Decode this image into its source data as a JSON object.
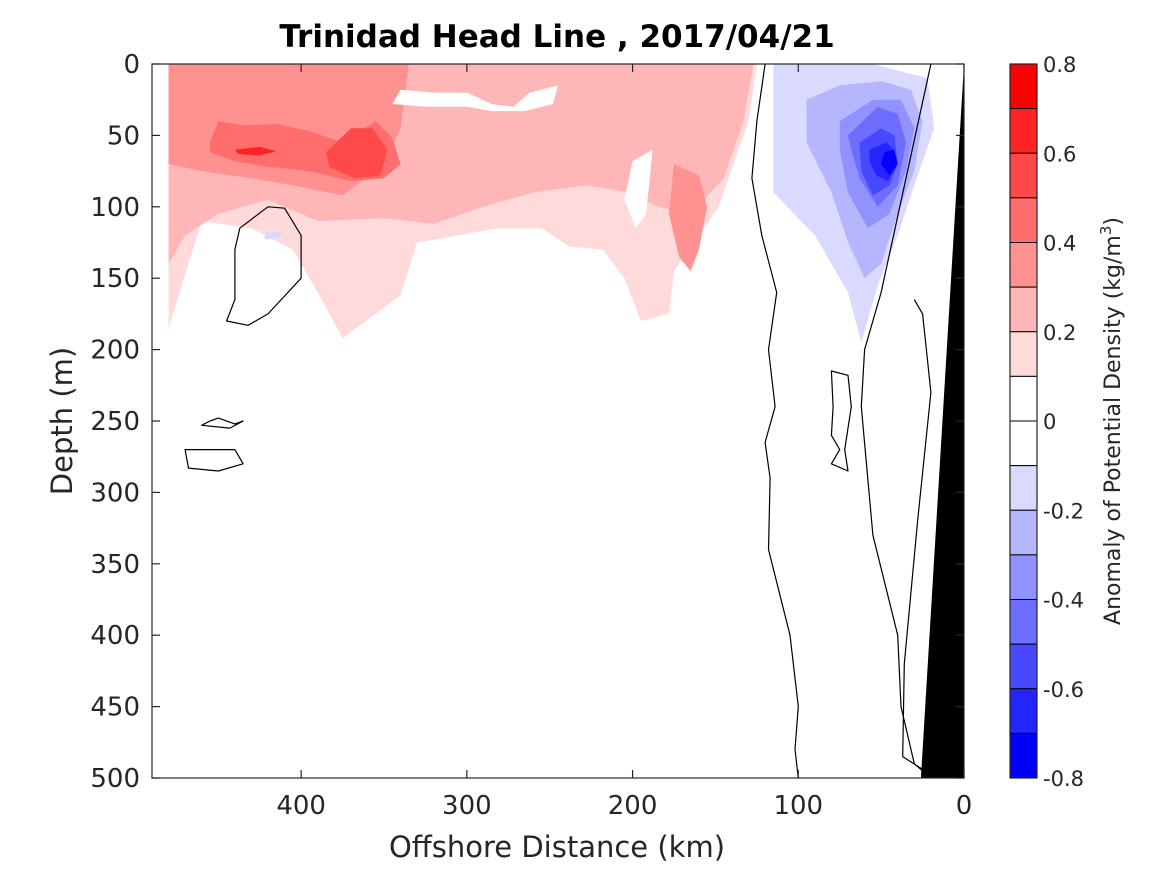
{
  "chart_data": {
    "type": "heatmap",
    "title": "Trinidad Head Line , 2017/04/21",
    "xlabel": "Offshore Distance (km)",
    "ylabel": "Depth (m)",
    "xlim": [
      490,
      0
    ],
    "ylim": [
      0,
      500
    ],
    "x_ticks": [
      400,
      300,
      200,
      100,
      0
    ],
    "y_ticks": [
      0,
      50,
      100,
      150,
      200,
      250,
      300,
      350,
      400,
      450,
      500
    ],
    "colorbar": {
      "label_main": "Anomaly of Potential Density (kg/m",
      "label_sup": "3",
      "label_close": ")",
      "range": [
        -0.8,
        0.8
      ],
      "ticks": [
        0.8,
        0.6,
        0.4,
        0.2,
        0,
        -0.2,
        -0.4,
        -0.6,
        -0.8
      ],
      "tick_labels": [
        "0.8",
        "0.6",
        "0.4",
        "0.2",
        "0",
        "-0.2",
        "-0.4",
        "-0.6",
        "-0.8"
      ],
      "levels": [
        {
          "min": 0.7,
          "max": 0.8,
          "color": "#ff0000"
        },
        {
          "min": 0.6,
          "max": 0.7,
          "color": "#ff2424"
        },
        {
          "min": 0.5,
          "max": 0.6,
          "color": "#ff4848"
        },
        {
          "min": 0.4,
          "max": 0.5,
          "color": "#ff6d6d"
        },
        {
          "min": 0.3,
          "max": 0.4,
          "color": "#ff9191"
        },
        {
          "min": 0.2,
          "max": 0.3,
          "color": "#ffb6b6"
        },
        {
          "min": 0.1,
          "max": 0.2,
          "color": "#ffdada"
        },
        {
          "min": 0.0,
          "max": 0.1,
          "color": "#ffffff"
        },
        {
          "min": -0.1,
          "max": 0.0,
          "color": "#ffffff"
        },
        {
          "min": -0.2,
          "max": -0.1,
          "color": "#dadaff"
        },
        {
          "min": -0.3,
          "max": -0.2,
          "color": "#b6b6ff"
        },
        {
          "min": -0.4,
          "max": -0.3,
          "color": "#9191ff"
        },
        {
          "min": -0.5,
          "max": -0.4,
          "color": "#6d6dff"
        },
        {
          "min": -0.6,
          "max": -0.5,
          "color": "#4848ff"
        },
        {
          "min": -0.7,
          "max": -0.6,
          "color": "#2424ff"
        },
        {
          "min": -0.8,
          "max": -0.7,
          "color": "#0000ff"
        }
      ]
    },
    "regions": [
      {
        "level": 0.15,
        "color": "#ffdada",
        "points": [
          [
            480,
            0
          ],
          [
            125,
            0
          ],
          [
            130,
            40
          ],
          [
            148,
            100
          ],
          [
            175,
            145
          ],
          [
            178,
            175
          ],
          [
            195,
            180
          ],
          [
            205,
            150
          ],
          [
            218,
            130
          ],
          [
            238,
            128
          ],
          [
            255,
            115
          ],
          [
            282,
            115
          ],
          [
            305,
            120
          ],
          [
            330,
            125
          ],
          [
            340,
            162
          ],
          [
            375,
            192
          ],
          [
            390,
            160
          ],
          [
            405,
            130
          ],
          [
            430,
            115
          ],
          [
            460,
            110
          ],
          [
            480,
            185
          ]
        ]
      },
      {
        "level": 0.25,
        "color": "#ffb6b6",
        "points": [
          [
            480,
            0
          ],
          [
            127,
            0
          ],
          [
            133,
            40
          ],
          [
            145,
            80
          ],
          [
            165,
            105
          ],
          [
            185,
            100
          ],
          [
            202,
            90
          ],
          [
            228,
            85
          ],
          [
            260,
            90
          ],
          [
            290,
            100
          ],
          [
            320,
            112
          ],
          [
            350,
            108
          ],
          [
            390,
            110
          ],
          [
            420,
            95
          ],
          [
            450,
            105
          ],
          [
            470,
            120
          ],
          [
            480,
            140
          ]
        ]
      },
      {
        "level": 0.35,
        "color": "#ff9191",
        "points": [
          [
            480,
            0
          ],
          [
            335,
            0
          ],
          [
            340,
            45
          ],
          [
            350,
            70
          ],
          [
            375,
            92
          ],
          [
            405,
            85
          ],
          [
            430,
            80
          ],
          [
            460,
            75
          ],
          [
            480,
            70
          ],
          [
            480,
            0
          ]
        ]
      },
      {
        "level": 0.35,
        "color": "#ff9191",
        "points": [
          [
            175,
            70
          ],
          [
            160,
            78
          ],
          [
            155,
            100
          ],
          [
            160,
            130
          ],
          [
            165,
            145
          ],
          [
            172,
            135
          ],
          [
            178,
            105
          ]
        ]
      },
      {
        "level": 0.45,
        "color": "#ff6d6d",
        "points": [
          [
            455,
            55
          ],
          [
            450,
            40
          ],
          [
            435,
            43
          ],
          [
            415,
            42
          ],
          [
            395,
            47
          ],
          [
            375,
            55
          ],
          [
            355,
            40
          ],
          [
            345,
            52
          ],
          [
            340,
            70
          ],
          [
            350,
            80
          ],
          [
            370,
            82
          ],
          [
            395,
            75
          ],
          [
            420,
            72
          ],
          [
            440,
            68
          ],
          [
            455,
            62
          ]
        ]
      },
      {
        "level": 0.55,
        "color": "#ff4848",
        "points": [
          [
            385,
            62
          ],
          [
            370,
            45
          ],
          [
            357,
            45
          ],
          [
            348,
            60
          ],
          [
            352,
            78
          ],
          [
            368,
            80
          ],
          [
            383,
            72
          ]
        ]
      },
      {
        "level": 0.65,
        "color": "#ff2424",
        "points": [
          [
            440,
            60
          ],
          [
            425,
            58
          ],
          [
            415,
            61
          ],
          [
            425,
            64
          ],
          [
            438,
            63
          ]
        ]
      },
      {
        "level": 0.15,
        "color": "#ffffff",
        "points": [
          [
            188,
            60
          ],
          [
            200,
            68
          ],
          [
            205,
            95
          ],
          [
            198,
            115
          ],
          [
            192,
            105
          ],
          [
            190,
            85
          ]
        ]
      },
      {
        "level": 0.15,
        "color": "#ffffff",
        "points": [
          [
            245,
            15
          ],
          [
            262,
            20
          ],
          [
            272,
            30
          ],
          [
            285,
            28
          ],
          [
            300,
            20
          ],
          [
            320,
            20
          ],
          [
            340,
            18
          ],
          [
            345,
            28
          ],
          [
            325,
            30
          ],
          [
            300,
            30
          ],
          [
            285,
            33
          ],
          [
            265,
            33
          ],
          [
            248,
            28
          ]
        ]
      },
      {
        "level": -0.15,
        "color": "#dadaff",
        "points": [
          [
            115,
            0
          ],
          [
            55,
            0
          ],
          [
            22,
            10
          ],
          [
            18,
            45
          ],
          [
            30,
            85
          ],
          [
            40,
            120
          ],
          [
            52,
            155
          ],
          [
            62,
            195
          ],
          [
            70,
            160
          ],
          [
            90,
            120
          ],
          [
            115,
            90
          ],
          [
            115,
            30
          ]
        ]
      },
      {
        "level": -0.15,
        "color": "#dadaff",
        "points": [
          [
            422,
            117
          ],
          [
            410,
            118
          ],
          [
            414,
            122
          ],
          [
            422,
            123
          ]
        ]
      },
      {
        "level": -0.25,
        "color": "#b6b6ff",
        "points": [
          [
            95,
            25
          ],
          [
            75,
            15
          ],
          [
            50,
            12
          ],
          [
            32,
            18
          ],
          [
            25,
            40
          ],
          [
            30,
            75
          ],
          [
            40,
            105
          ],
          [
            50,
            140
          ],
          [
            60,
            150
          ],
          [
            70,
            125
          ],
          [
            80,
            90
          ],
          [
            95,
            55
          ]
        ]
      },
      {
        "level": -0.35,
        "color": "#9191ff",
        "points": [
          [
            75,
            40
          ],
          [
            55,
            25
          ],
          [
            38,
            25
          ],
          [
            30,
            45
          ],
          [
            35,
            75
          ],
          [
            45,
            105
          ],
          [
            58,
            115
          ],
          [
            70,
            90
          ],
          [
            75,
            60
          ]
        ]
      },
      {
        "level": -0.45,
        "color": "#6d6dff",
        "points": [
          [
            70,
            50
          ],
          [
            52,
            30
          ],
          [
            40,
            35
          ],
          [
            35,
            55
          ],
          [
            40,
            85
          ],
          [
            52,
            100
          ],
          [
            63,
            80
          ],
          [
            68,
            60
          ]
        ]
      },
      {
        "level": -0.55,
        "color": "#4848ff",
        "points": [
          [
            63,
            55
          ],
          [
            50,
            45
          ],
          [
            42,
            50
          ],
          [
            40,
            70
          ],
          [
            45,
            85
          ],
          [
            55,
            92
          ],
          [
            62,
            75
          ]
        ]
      },
      {
        "level": -0.65,
        "color": "#2424ff",
        "points": [
          [
            57,
            60
          ],
          [
            47,
            55
          ],
          [
            42,
            60
          ],
          [
            41,
            72
          ],
          [
            46,
            82
          ],
          [
            53,
            78
          ],
          [
            57,
            68
          ]
        ]
      },
      {
        "level": -0.75,
        "color": "#0000ff",
        "points": [
          [
            48,
            62
          ],
          [
            42,
            60
          ],
          [
            40,
            70
          ],
          [
            45,
            78
          ],
          [
            50,
            70
          ]
        ]
      }
    ],
    "zero_contours": [
      {
        "closed": false,
        "points": [
          [
            120,
            0
          ],
          [
            125,
            40
          ],
          [
            128,
            80
          ],
          [
            122,
            120
          ],
          [
            113,
            160
          ],
          [
            118,
            200
          ],
          [
            114,
            240
          ],
          [
            120,
            265
          ],
          [
            117,
            290
          ],
          [
            118,
            340
          ],
          [
            105,
            400
          ],
          [
            100,
            450
          ],
          [
            102,
            480
          ],
          [
            100,
            500
          ]
        ]
      },
      {
        "closed": false,
        "points": [
          [
            20,
            0
          ],
          [
            35,
            80
          ],
          [
            50,
            160
          ],
          [
            60,
            200
          ],
          [
            62,
            240
          ],
          [
            55,
            330
          ],
          [
            40,
            400
          ],
          [
            38,
            450
          ],
          [
            30,
            490
          ],
          [
            25,
            495
          ]
        ]
      },
      {
        "closed": false,
        "points": [
          [
            30,
            165
          ],
          [
            25,
            175
          ],
          [
            20,
            230
          ],
          [
            28,
            320
          ],
          [
            36,
            420
          ],
          [
            37,
            485
          ],
          [
            25,
            494
          ]
        ]
      },
      {
        "closed": true,
        "points": [
          [
            80,
            215
          ],
          [
            70,
            218
          ],
          [
            68,
            240
          ],
          [
            72,
            270
          ],
          [
            70,
            285
          ],
          [
            80,
            280
          ],
          [
            75,
            270
          ],
          [
            80,
            260
          ],
          [
            79,
            240
          ]
        ]
      },
      {
        "closed": true,
        "points": [
          [
            420,
            100
          ],
          [
            410,
            101
          ],
          [
            400,
            120
          ],
          [
            400,
            150
          ],
          [
            420,
            175
          ],
          [
            432,
            183
          ],
          [
            445,
            180
          ],
          [
            440,
            165
          ],
          [
            440,
            130
          ],
          [
            437,
            115
          ]
        ]
      },
      {
        "closed": true,
        "points": [
          [
            450,
            248
          ],
          [
            440,
            252
          ],
          [
            435,
            250
          ],
          [
            443,
            255
          ],
          [
            460,
            253
          ],
          [
            455,
            250
          ]
        ]
      },
      {
        "closed": true,
        "points": [
          [
            470,
            270
          ],
          [
            440,
            270
          ],
          [
            435,
            280
          ],
          [
            450,
            285
          ],
          [
            468,
            283
          ]
        ]
      }
    ],
    "bathymetry": {
      "color": "#000000",
      "points": [
        [
          0,
          0
        ],
        [
          26,
          500
        ],
        [
          0,
          500
        ]
      ]
    }
  }
}
